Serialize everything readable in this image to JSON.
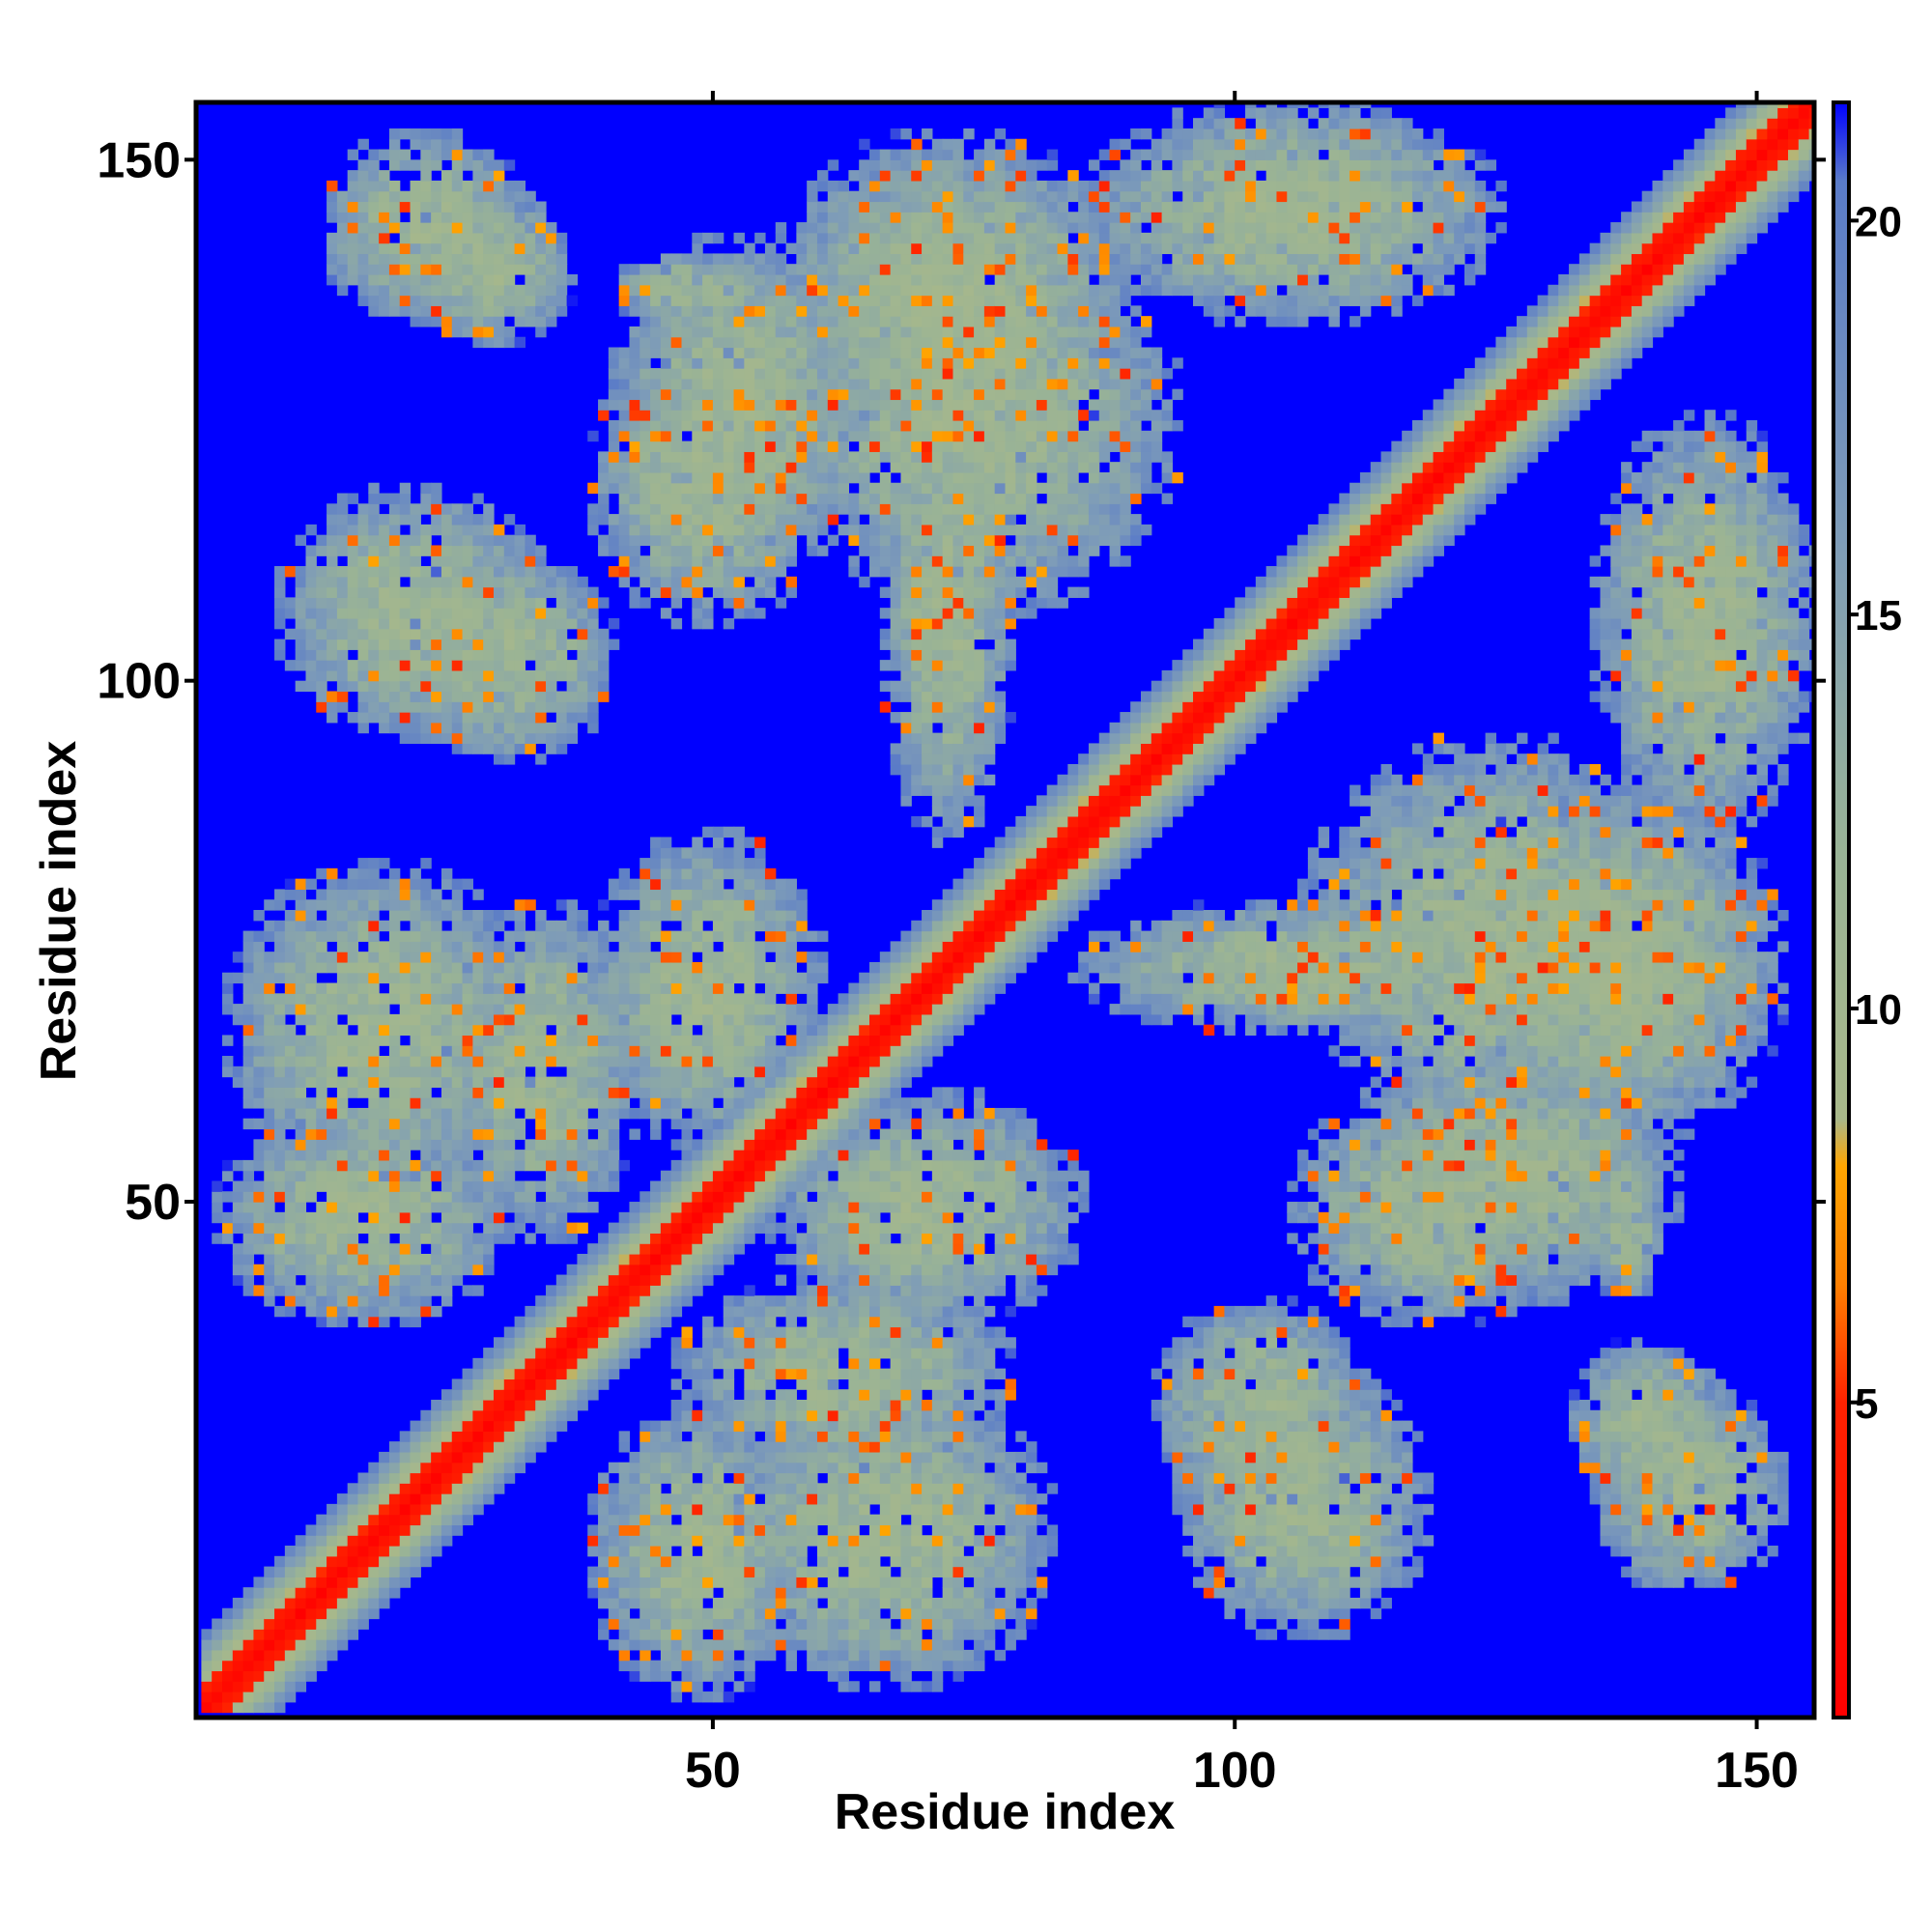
{
  "chart_data": {
    "type": "heatmap",
    "title": "",
    "xlabel": "Residue index",
    "ylabel": "Residue index",
    "n_residues": 155,
    "xlim": [
      1,
      155
    ],
    "ylim": [
      1,
      155
    ],
    "x_ticks": [
      50,
      100,
      150
    ],
    "y_ticks": [
      50,
      100,
      150
    ],
    "x_tick_labels": [
      "50",
      "100",
      "150"
    ],
    "y_tick_labels": [
      "50",
      "100",
      "150"
    ],
    "colorbar": {
      "range": [
        1,
        21.5
      ],
      "ticks": [
        5,
        10,
        15,
        20
      ],
      "tick_labels": [
        "5",
        "10",
        "15",
        "20"
      ],
      "stops": [
        {
          "value": 1,
          "color": "#ff0000"
        },
        {
          "value": 5,
          "color": "#ff2200"
        },
        {
          "value": 6.5,
          "color": "#ff8000"
        },
        {
          "value": 8,
          "color": "#ffa500"
        },
        {
          "value": 8.6,
          "color": "#a8b88a"
        },
        {
          "value": 12,
          "color": "#99b396"
        },
        {
          "value": 16,
          "color": "#7e9cb8"
        },
        {
          "value": 20.5,
          "color": "#5a7bc8"
        },
        {
          "value": 21.5,
          "color": "#0000ff"
        }
      ]
    },
    "background_value": 21.5,
    "diagonal_band": {
      "core_width": 2,
      "halo_width": 7
    },
    "contact_regions": [
      {
        "x": [
          38,
          58
        ],
        "y": [
          2,
          30
        ]
      },
      {
        "x": [
          46,
          78
        ],
        "y": [
          24,
          42
        ]
      },
      {
        "x": [
          56,
          94
        ],
        "y": [
          106,
          143
        ]
      },
      {
        "x": [
          40,
          64
        ],
        "y": [
          110,
          142
        ]
      },
      {
        "x": [
          55,
          90
        ],
        "y": [
          120,
          152
        ]
      },
      {
        "x": [
          8,
          34
        ],
        "y": [
          94,
          118
        ]
      },
      {
        "x": [
          12,
          32
        ],
        "y": [
          134,
          152
        ]
      },
      {
        "x": [
          84,
          128
        ],
        "y": [
          78,
          66
        ]
      },
      {
        "x": [
          105,
          132
        ],
        "y": [
          38,
          60
        ]
      },
      {
        "x": [
          92,
          112
        ],
        "y": [
          20,
          40
        ]
      },
      {
        "x": [
          134,
          155
        ],
        "y": [
          85,
          125
        ]
      },
      {
        "x": [
          124,
          150
        ],
        "y": [
          58,
          82
        ]
      },
      {
        "x": [
          132,
          146
        ],
        "y": [
          20,
          36
        ]
      },
      {
        "x": [
          134,
          140
        ],
        "y": [
          40,
          55
        ]
      },
      {
        "x": [
          3,
          32
        ],
        "y": [
          50,
          82
        ]
      },
      {
        "x": [
          38,
          60
        ],
        "y": [
          55,
          85
        ]
      },
      {
        "x": [
          96,
          110
        ],
        "y": [
          138,
          152
        ]
      }
    ]
  }
}
